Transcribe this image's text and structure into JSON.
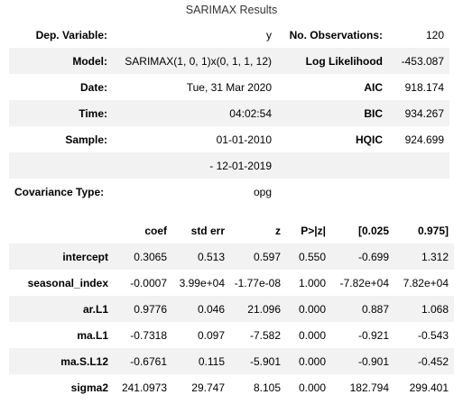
{
  "caption": "SARIMAX Results",
  "summary": {
    "rows": [
      {
        "l1": "Dep. Variable:",
        "v1": "y",
        "l2": "No. Observations:",
        "v2": "120"
      },
      {
        "l1": "Model:",
        "v1": "SARIMAX(1, 0, 1)x(0, 1, 1, 12)",
        "l2": "Log Likelihood",
        "v2": "-453.087"
      },
      {
        "l1": "Date:",
        "v1": "Tue, 31 Mar 2020",
        "l2": "AIC",
        "v2": "918.174"
      },
      {
        "l1": "Time:",
        "v1": "04:02:54",
        "l2": "BIC",
        "v2": "934.267"
      },
      {
        "l1": "Sample:",
        "v1": "01-01-2010",
        "l2": "HQIC",
        "v2": "924.699"
      },
      {
        "l1": "",
        "v1": "- 12-01-2019",
        "l2": "",
        "v2": ""
      },
      {
        "l1": "Covariance Type:",
        "v1": "opg",
        "l2": "",
        "v2": ""
      }
    ]
  },
  "coef_table": {
    "headers": [
      "",
      "coef",
      "std err",
      "z",
      "P>|z|",
      "[0.025",
      "0.975]"
    ],
    "rows": [
      [
        "intercept",
        "0.3065",
        "0.513",
        "0.597",
        "0.550",
        "-0.699",
        "1.312"
      ],
      [
        "seasonal_index",
        "-0.0007",
        "3.99e+04",
        "-1.77e-08",
        "1.000",
        "-7.82e+04",
        "7.82e+04"
      ],
      [
        "ar.L1",
        "0.9776",
        "0.046",
        "21.096",
        "0.000",
        "0.887",
        "1.068"
      ],
      [
        "ma.L1",
        "-0.7318",
        "0.097",
        "-7.582",
        "0.000",
        "-0.921",
        "-0.543"
      ],
      [
        "ma.S.L12",
        "-0.6761",
        "0.115",
        "-5.901",
        "0.000",
        "-0.901",
        "-0.452"
      ],
      [
        "sigma2",
        "241.0973",
        "29.747",
        "8.105",
        "0.000",
        "182.794",
        "299.401"
      ]
    ]
  }
}
